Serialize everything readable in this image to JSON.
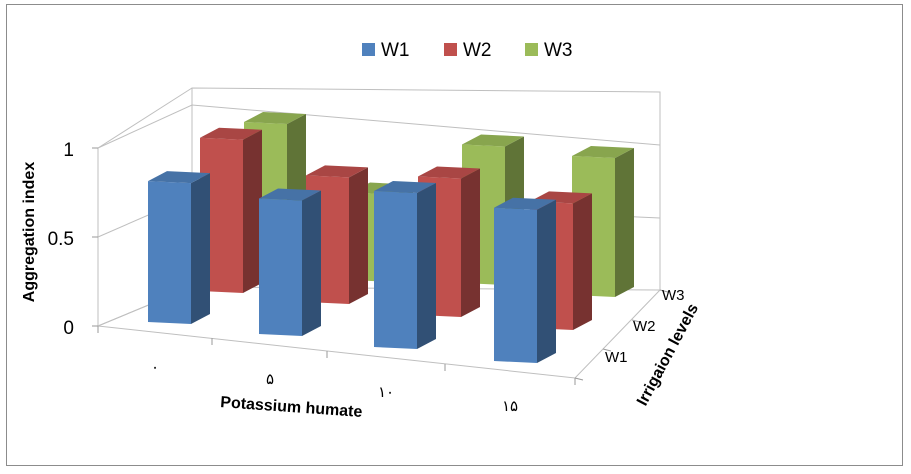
{
  "chart_data": {
    "type": "bar",
    "subtype": "3d-column",
    "categories": [
      "۰",
      "۵",
      "۱۰",
      "۱۵"
    ],
    "depth_categories": [
      "W1",
      "W2",
      "W3"
    ],
    "series": [
      {
        "name": "W1",
        "color": "#4f81bd",
        "values": [
          0.78,
          0.75,
          0.88,
          0.85
        ]
      },
      {
        "name": "W2",
        "color": "#c0504d",
        "values": [
          0.85,
          0.7,
          0.78,
          0.7
        ]
      },
      {
        "name": "W3",
        "color": "#9bbb59",
        "values": [
          0.82,
          0.48,
          0.78,
          0.77
        ]
      }
    ],
    "xlabel": "Potassium humate",
    "ylabel": "Aggregation index",
    "zlabel": "Irrigaion levels",
    "yticks": [
      "0",
      "0.5",
      "1"
    ],
    "ylim": [
      0,
      1
    ],
    "grid": true,
    "legend_position": "top"
  }
}
